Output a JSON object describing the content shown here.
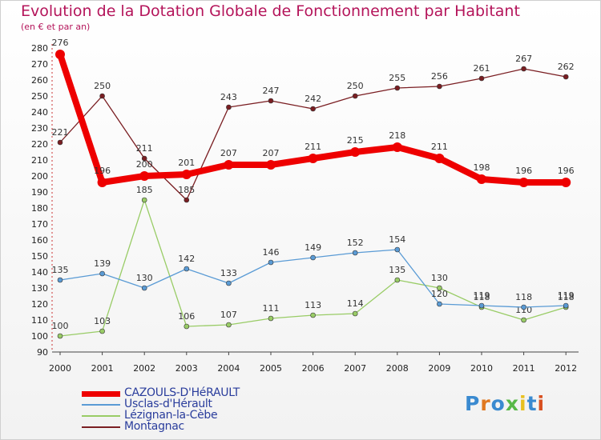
{
  "header": {
    "title": "Evolution de la Dotation Globale de Fonctionnement par Habitant",
    "subtitle": "(en € et par an)"
  },
  "chart_data": {
    "type": "line",
    "title": "Evolution de la Dotation Globale de Fonctionnement par Habitant",
    "ylabel": "(en € et par an)",
    "xlabel": "",
    "ylim": [
      90,
      280
    ],
    "ytick_step": 10,
    "grid": false,
    "legend_position": "bottom-left",
    "categories": [
      "2000",
      "2001",
      "2002",
      "2003",
      "2004",
      "2005",
      "2006",
      "2007",
      "2008",
      "2009",
      "2010",
      "2011",
      "2012"
    ],
    "series": [
      {
        "name": "Montagnac",
        "color": "#7a1e22",
        "values": [
          221,
          250,
          211,
          185,
          243,
          247,
          242,
          250,
          255,
          256,
          261,
          267,
          262
        ]
      },
      {
        "name": "Lézignan-la-Cèbe",
        "color": "#99cc66",
        "values": [
          100,
          103,
          185,
          106,
          107,
          111,
          113,
          114,
          135,
          130,
          118,
          110,
          118
        ]
      },
      {
        "name": "Usclas-d'Hérault",
        "color": "#5a9bd5",
        "values": [
          135,
          139,
          130,
          142,
          133,
          146,
          149,
          152,
          154,
          120,
          119,
          118,
          119
        ]
      },
      {
        "name": "CAZOULS-D'HéRAULT",
        "color": "#ee0000",
        "values": [
          276,
          196,
          200,
          201,
          207,
          207,
          211,
          215,
          218,
          211,
          198,
          196,
          196
        ]
      }
    ]
  },
  "legend": [
    {
      "name": "CAZOULS-D'HéRAULT",
      "color": "#ee0000"
    },
    {
      "name": "Usclas-d'Hérault",
      "color": "#5a9bd5"
    },
    {
      "name": "Lézignan-la-Cèbe",
      "color": "#99cc66"
    },
    {
      "name": "Montagnac",
      "color": "#7a1e22"
    }
  ],
  "logo": {
    "text": "Proxiti",
    "colors": [
      "#3a8ad0",
      "#e07820",
      "#3a8ad0",
      "#58b848",
      "#e8c020",
      "#3a8ad0",
      "#d85020"
    ]
  }
}
